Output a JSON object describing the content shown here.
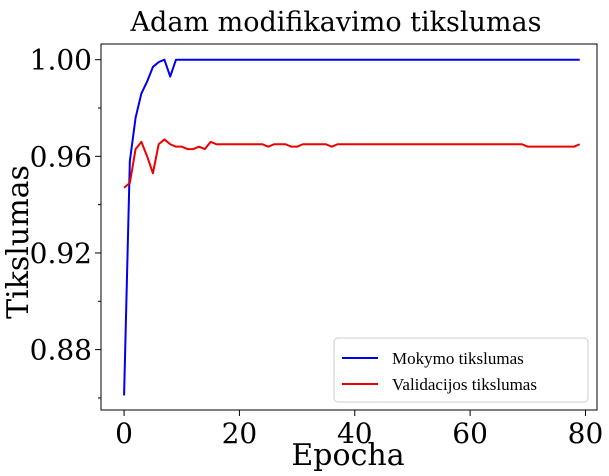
{
  "chart_data": {
    "type": "line",
    "title": "Adam modifikavimo tikslumas",
    "xlabel": "Epocha",
    "ylabel": "Tikslumas",
    "xlim": [
      -4,
      82
    ],
    "ylim": [
      0.855,
      1.0065
    ],
    "xticks": [
      0,
      20,
      40,
      60,
      80
    ],
    "yticks": [
      0.88,
      0.92,
      0.96,
      1.0
    ],
    "ytick_labels": [
      "0.88",
      "0.92",
      "0.96",
      "1.00"
    ],
    "yminor": [
      0.86,
      0.9,
      0.94,
      0.98
    ],
    "legend_position": "lower-right",
    "series": [
      {
        "name": "Mokymo tikslumas",
        "color": "#0000ee",
        "values": [
          0.861,
          0.958,
          0.976,
          0.986,
          0.991,
          0.997,
          0.999,
          1.0,
          0.993,
          1.0,
          1.0,
          1.0,
          1.0,
          1.0,
          1.0,
          1.0,
          1.0,
          1.0,
          1.0,
          1.0,
          1.0,
          1.0,
          1.0,
          1.0,
          1.0,
          1.0,
          1.0,
          1.0,
          1.0,
          1.0,
          1.0,
          1.0,
          1.0,
          1.0,
          1.0,
          1.0,
          1.0,
          1.0,
          1.0,
          1.0,
          1.0,
          1.0,
          1.0,
          1.0,
          1.0,
          1.0,
          1.0,
          1.0,
          1.0,
          1.0,
          1.0,
          1.0,
          1.0,
          1.0,
          1.0,
          1.0,
          1.0,
          1.0,
          1.0,
          1.0,
          1.0,
          1.0,
          1.0,
          1.0,
          1.0,
          1.0,
          1.0,
          1.0,
          1.0,
          1.0,
          1.0,
          1.0,
          1.0,
          1.0,
          1.0,
          1.0,
          1.0,
          1.0,
          1.0,
          1.0
        ]
      },
      {
        "name": "Validacijos tikslumas",
        "color": "#ee0000",
        "values": [
          0.947,
          0.949,
          0.963,
          0.966,
          0.96,
          0.953,
          0.965,
          0.967,
          0.965,
          0.964,
          0.964,
          0.963,
          0.963,
          0.964,
          0.963,
          0.966,
          0.965,
          0.965,
          0.965,
          0.965,
          0.965,
          0.965,
          0.965,
          0.965,
          0.965,
          0.964,
          0.965,
          0.965,
          0.965,
          0.964,
          0.964,
          0.965,
          0.965,
          0.965,
          0.965,
          0.965,
          0.964,
          0.965,
          0.965,
          0.965,
          0.965,
          0.965,
          0.965,
          0.965,
          0.965,
          0.965,
          0.965,
          0.965,
          0.965,
          0.965,
          0.965,
          0.965,
          0.965,
          0.965,
          0.965,
          0.965,
          0.965,
          0.965,
          0.965,
          0.965,
          0.965,
          0.965,
          0.965,
          0.965,
          0.965,
          0.965,
          0.965,
          0.965,
          0.965,
          0.965,
          0.964,
          0.964,
          0.964,
          0.964,
          0.964,
          0.964,
          0.964,
          0.964,
          0.964,
          0.965
        ]
      }
    ]
  }
}
